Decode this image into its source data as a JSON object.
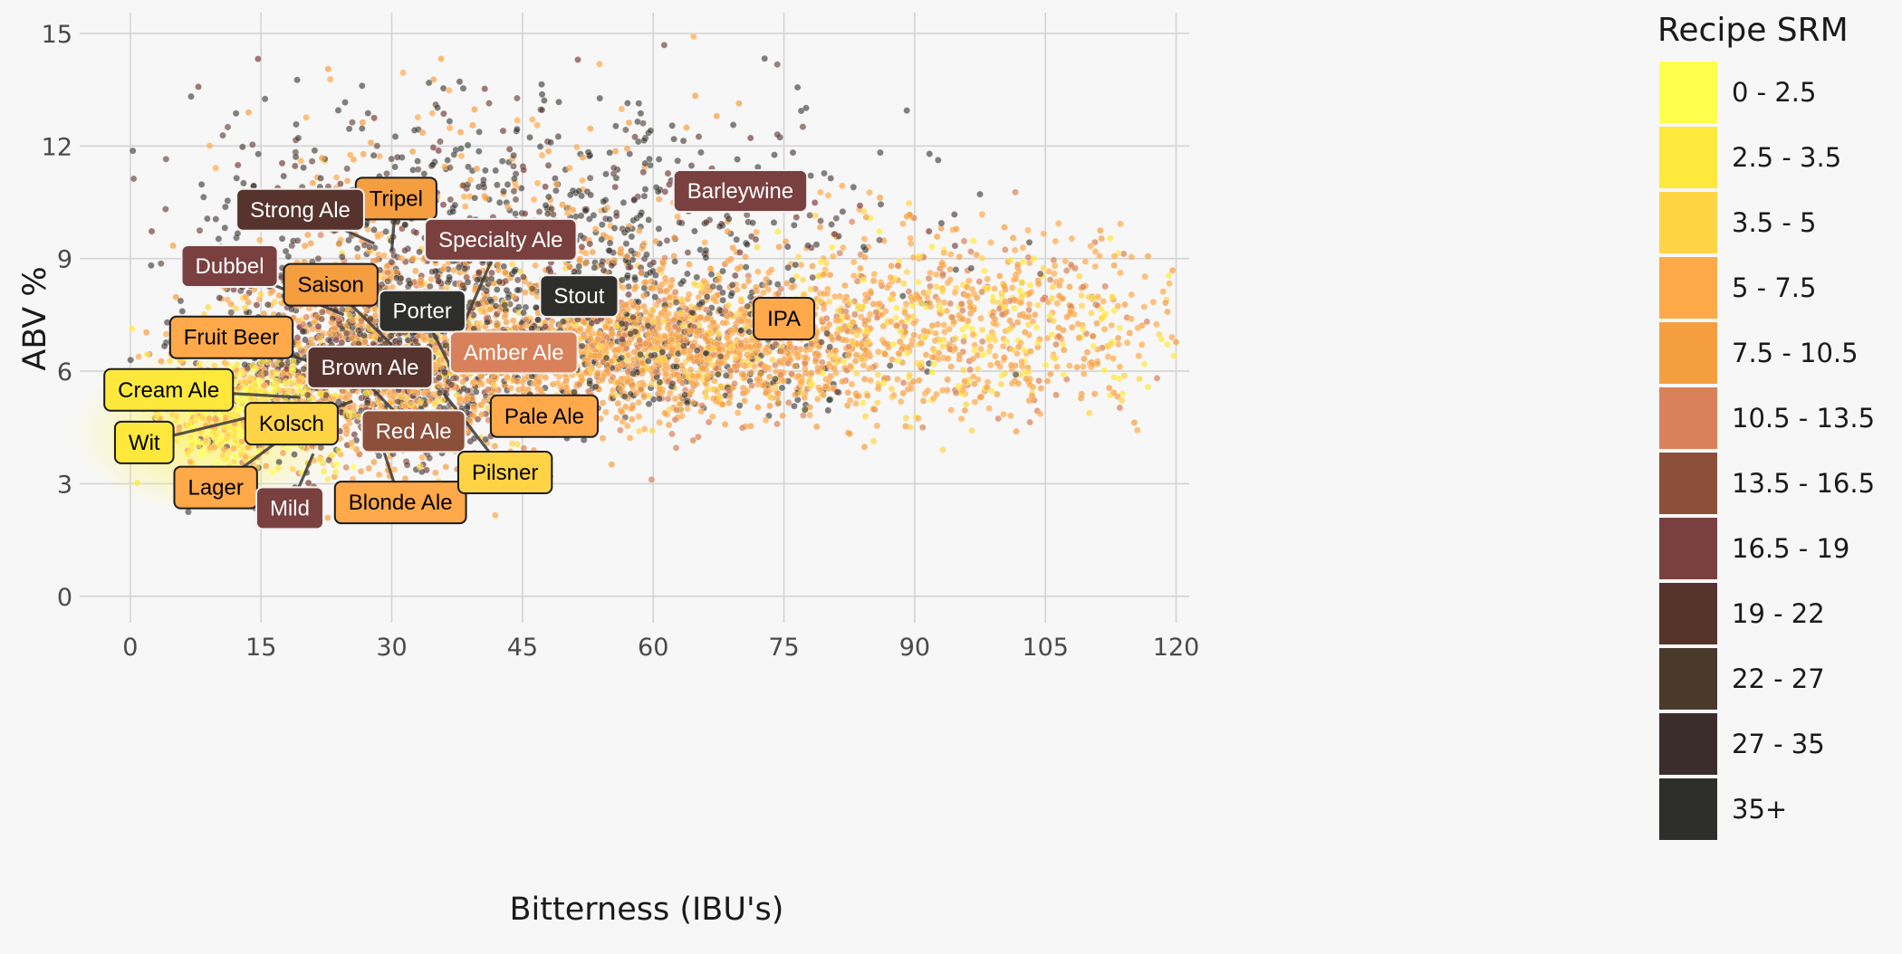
{
  "chart_data": {
    "type": "scatter",
    "xlabel": "Bitterness (IBU's)",
    "ylabel": "ABV %",
    "xlim": [
      -3,
      121.5
    ],
    "ylim": [
      -0.8,
      15.6
    ],
    "x_ticks": [
      0,
      15,
      30,
      45,
      60,
      75,
      90,
      105,
      120
    ],
    "y_ticks": [
      0,
      3,
      6,
      9,
      12,
      15
    ],
    "grid": true,
    "legend": {
      "title": "Recipe SRM",
      "placement": "right",
      "entries": [
        {
          "label": "0 - 2.5",
          "color": "#ffff4d"
        },
        {
          "label": "2.5 - 3.5",
          "color": "#ffe83c"
        },
        {
          "label": "3.5 - 5",
          "color": "#ffd444"
        },
        {
          "label": "5 - 7.5",
          "color": "#ffa94a"
        },
        {
          "label": "7.5 - 10.5",
          "color": "#f59e40"
        },
        {
          "label": "10.5 - 13.5",
          "color": "#d9815a"
        },
        {
          "label": "13.5 - 16.5",
          "color": "#8c4f39"
        },
        {
          "label": "16.5 - 19",
          "color": "#7a4040"
        },
        {
          "label": "19 - 22",
          "color": "#56332c"
        },
        {
          "label": "22 - 27",
          "color": "#4a3a2c"
        },
        {
          "label": "27 - 35",
          "color": "#3a2d2b"
        },
        {
          "label": "35+",
          "color": "#2e2e2a"
        }
      ]
    },
    "labels": [
      {
        "text": "Tripel",
        "x": 30.5,
        "y": 10.6,
        "ax": 30.0,
        "ay": 9.2,
        "srm": 4,
        "text_color": "#000000"
      },
      {
        "text": "Strong Ale",
        "x": 19.5,
        "y": 10.3,
        "ax": 28.0,
        "ay": 9.4,
        "srm": 8,
        "text_color": "#ffffff"
      },
      {
        "text": "Specialty Ale",
        "x": 42.5,
        "y": 9.5,
        "ax": 37.0,
        "ay": 6.6,
        "srm": 7,
        "text_color": "#ffffff"
      },
      {
        "text": "Barleywine",
        "x": 70.0,
        "y": 10.8,
        "ax": 70.0,
        "ay": 10.8,
        "srm": 7,
        "text_color": "#ffffff"
      },
      {
        "text": "Dubbel",
        "x": 11.4,
        "y": 8.8,
        "ax": 24.5,
        "ay": 7.5,
        "srm": 7,
        "text_color": "#ffffff"
      },
      {
        "text": "Saison",
        "x": 23.0,
        "y": 8.3,
        "ax": 30.0,
        "ay": 6.7,
        "srm": 4,
        "text_color": "#000000"
      },
      {
        "text": "Porter",
        "x": 33.5,
        "y": 7.6,
        "ax": 37.0,
        "ay": 6.0,
        "srm": 11,
        "text_color": "#ffffff"
      },
      {
        "text": "Stout",
        "x": 51.5,
        "y": 8.0,
        "ax": 51.5,
        "ay": 8.0,
        "srm": 11,
        "text_color": "#ffffff"
      },
      {
        "text": "IPA",
        "x": 75.0,
        "y": 7.4,
        "ax": 75.0,
        "ay": 7.4,
        "srm": 3,
        "text_color": "#000000"
      },
      {
        "text": "Fruit Beer",
        "x": 11.6,
        "y": 6.9,
        "ax": 27.0,
        "ay": 5.8,
        "srm": 3,
        "text_color": "#000000"
      },
      {
        "text": "Brown Ale",
        "x": 27.5,
        "y": 6.1,
        "ax": 27.5,
        "ay": 6.1,
        "srm": 8,
        "text_color": "#ffffff"
      },
      {
        "text": "Amber Ale",
        "x": 44.0,
        "y": 6.5,
        "ax": 44.0,
        "ay": 6.5,
        "srm": 5,
        "text_color": "#ffffff"
      },
      {
        "text": "Cream Ale",
        "x": 4.4,
        "y": 5.5,
        "ax": 19.5,
        "ay": 5.3,
        "srm": 1,
        "text_color": "#000000"
      },
      {
        "text": "Kolsch",
        "x": 18.5,
        "y": 4.6,
        "ax": 25.5,
        "ay": 5.2,
        "srm": 2,
        "text_color": "#000000"
      },
      {
        "text": "Red Ale",
        "x": 32.5,
        "y": 4.4,
        "ax": 27.5,
        "ay": 5.6,
        "srm": 6,
        "text_color": "#ffffff"
      },
      {
        "text": "Pale Ale",
        "x": 47.5,
        "y": 4.8,
        "ax": 47.5,
        "ay": 4.8,
        "srm": 3,
        "text_color": "#000000"
      },
      {
        "text": "Wit",
        "x": 1.6,
        "y": 4.1,
        "ax": 19.5,
        "ay": 5.1,
        "srm": 1,
        "text_color": "#000000"
      },
      {
        "text": "Lager",
        "x": 9.8,
        "y": 2.9,
        "ax": 18.5,
        "ay": 4.4,
        "srm": 3,
        "text_color": "#000000"
      },
      {
        "text": "Mild",
        "x": 18.3,
        "y": 2.35,
        "ax": 21.0,
        "ay": 3.8,
        "srm": 7,
        "text_color": "#ffffff"
      },
      {
        "text": "Blonde Ale",
        "x": 31.0,
        "y": 2.5,
        "ax": 27.5,
        "ay": 5.0,
        "srm": 3,
        "text_color": "#000000"
      },
      {
        "text": "Pilsner",
        "x": 43.0,
        "y": 3.3,
        "ax": 36.0,
        "ay": 5.4,
        "srm": 2,
        "text_color": "#000000"
      }
    ],
    "point_density": [
      {
        "x_mean": 28,
        "y_mean": 6.3,
        "x_sd": 10,
        "y_sd": 1.4,
        "weight": 0.32,
        "srm_mix": [
          2,
          3,
          3,
          4,
          4,
          5,
          6,
          7,
          8,
          10,
          11
        ]
      },
      {
        "x_mean": 12,
        "y_mean": 4.9,
        "x_sd": 5,
        "y_sd": 0.7,
        "weight": 0.1,
        "srm_mix": [
          0,
          1,
          1,
          2,
          3
        ]
      },
      {
        "x_mean": 60,
        "y_mean": 6.6,
        "x_sd": 13,
        "y_sd": 0.9,
        "weight": 0.28,
        "srm_mix": [
          2,
          3,
          3,
          4,
          4,
          4,
          5,
          11
        ]
      },
      {
        "x_mean": 95,
        "y_mean": 7.4,
        "x_sd": 14,
        "y_sd": 1.2,
        "weight": 0.14,
        "srm_mix": [
          2,
          3,
          3,
          4,
          4,
          5,
          1
        ]
      },
      {
        "x_mean": 45,
        "y_mean": 9.8,
        "x_sd": 20,
        "y_sd": 1.8,
        "weight": 0.16,
        "srm_mix": [
          11,
          11,
          10,
          8,
          7,
          4,
          3,
          11
        ]
      }
    ]
  }
}
